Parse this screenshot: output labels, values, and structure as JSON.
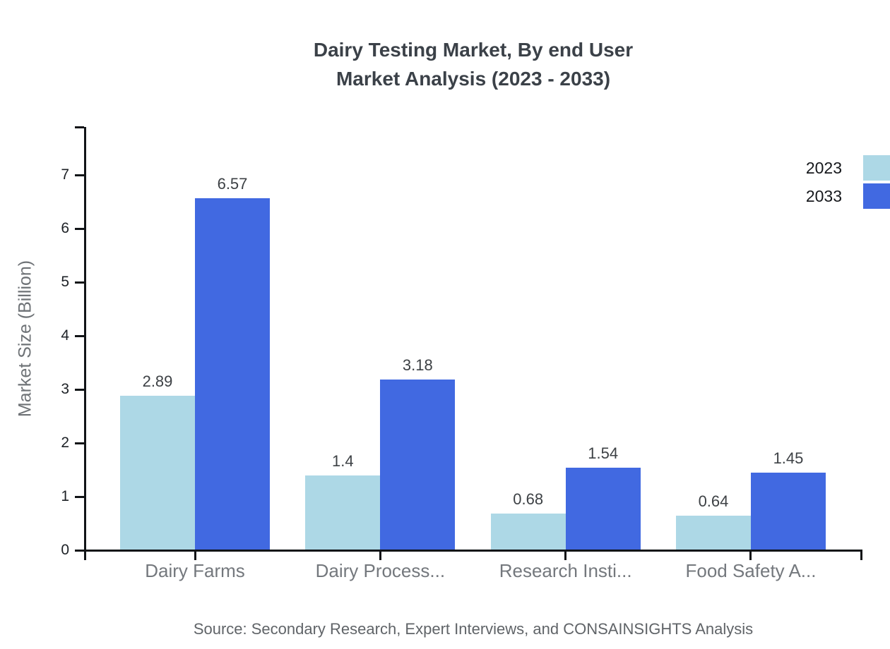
{
  "chart": {
    "title_line1": "Dairy Testing Market, By end User",
    "title_line2": "Market Analysis (2023 - 2033)",
    "source": "Source: Secondary Research, Expert Interviews, and CONSAINSIGHTS Analysis"
  },
  "chart_data": {
    "type": "bar",
    "title": "Dairy Testing Market, By end User - Market Analysis (2023 - 2033)",
    "categories": [
      "Dairy Farms",
      "Dairy Process...",
      "Research Insti...",
      "Food Safety A..."
    ],
    "series": [
      {
        "name": "2023",
        "color": "#ADD8E6",
        "values": [
          2.89,
          1.4,
          0.68,
          0.64
        ]
      },
      {
        "name": "2033",
        "color": "#4169E1",
        "values": [
          6.57,
          3.18,
          1.54,
          1.45
        ]
      }
    ],
    "xlabel": "",
    "ylabel": "Market Size (Billion)",
    "ylim": [
      0,
      7.9
    ],
    "yticks": [
      0,
      1,
      2,
      3,
      4,
      5,
      6,
      7
    ],
    "grid": false,
    "legend_position": "top-right",
    "value_labels": true,
    "axis_color": "#111417"
  }
}
